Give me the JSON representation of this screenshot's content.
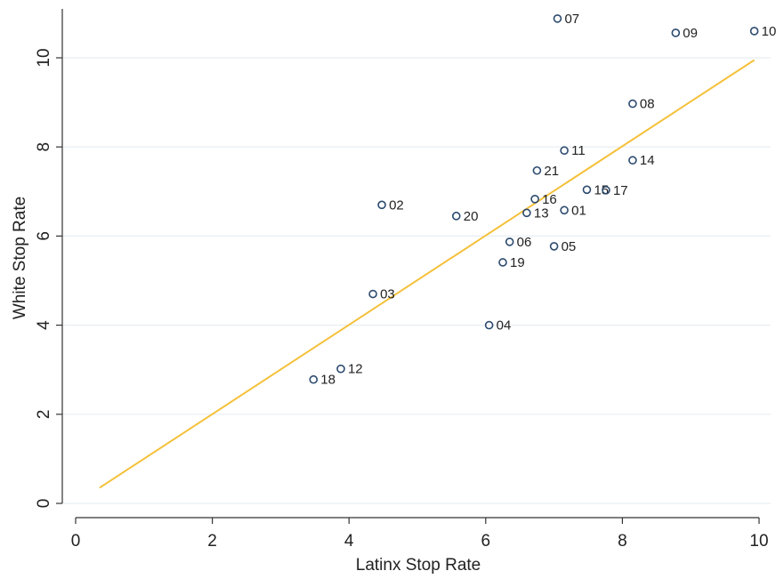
{
  "chart_data": {
    "type": "scatter",
    "xlabel": "Latinx Stop Rate",
    "ylabel": "White Stop Rate",
    "xlim": [
      0,
      10
    ],
    "ylim": [
      0,
      10
    ],
    "x_ticks": [
      "0",
      "2",
      "4",
      "6",
      "8",
      "10"
    ],
    "y_ticks": [
      "0",
      "2",
      "4",
      "6",
      "8",
      "10"
    ],
    "grid": "horizontal",
    "points": [
      {
        "label": "01",
        "x": 7.15,
        "y": 6.58
      },
      {
        "label": "02",
        "x": 4.48,
        "y": 6.7
      },
      {
        "label": "03",
        "x": 4.35,
        "y": 4.7
      },
      {
        "label": "04",
        "x": 6.05,
        "y": 4.0
      },
      {
        "label": "05",
        "x": 7.0,
        "y": 5.77
      },
      {
        "label": "06",
        "x": 6.35,
        "y": 5.87
      },
      {
        "label": "07",
        "x": 7.05,
        "y": 10.88
      },
      {
        "label": "08",
        "x": 8.15,
        "y": 8.97
      },
      {
        "label": "09",
        "x": 8.78,
        "y": 10.56
      },
      {
        "label": "10",
        "x": 9.93,
        "y": 10.6
      },
      {
        "label": "11",
        "x": 7.15,
        "y": 7.92
      },
      {
        "label": "12",
        "x": 3.88,
        "y": 3.02
      },
      {
        "label": "13",
        "x": 6.6,
        "y": 6.52
      },
      {
        "label": "14",
        "x": 8.15,
        "y": 7.7
      },
      {
        "label": "15",
        "x": 7.48,
        "y": 7.04
      },
      {
        "label": "16",
        "x": 6.72,
        "y": 6.83
      },
      {
        "label": "17",
        "x": 7.76,
        "y": 7.03
      },
      {
        "label": "18",
        "x": 3.48,
        "y": 2.78
      },
      {
        "label": "19",
        "x": 6.25,
        "y": 5.41
      },
      {
        "label": "20",
        "x": 5.57,
        "y": 6.45
      },
      {
        "label": "21",
        "x": 6.75,
        "y": 7.47
      }
    ],
    "fit_line": {
      "x": [
        0.35,
        9.93
      ],
      "y": [
        0.35,
        9.95
      ]
    },
    "colors": {
      "marker": "#2c4a6e",
      "fit_line": "#f5c13b",
      "grid": "#e8eef2",
      "axis": "#333333"
    }
  }
}
